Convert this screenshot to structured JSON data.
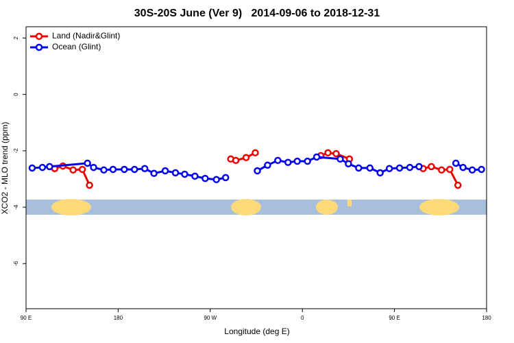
{
  "chart_data": {
    "type": "line",
    "title": "30S-20S June (Ver 9)   2014-09-06 to 2018-12-31",
    "x_label": "Longitude (deg E)",
    "y_label": "XCO2 - MLO trend (ppm)",
    "xlim": [
      90,
      540
    ],
    "ylim": [
      -7.6,
      2.4
    ],
    "xticks": [
      {
        "value": 90,
        "label": "90 E"
      },
      180,
      {
        "value": 270,
        "label": "90 W"
      },
      {
        "value": 360,
        "label": "0"
      },
      {
        "value": 450,
        "label": "90 E"
      },
      {
        "value": 540,
        "label": "180"
      }
    ],
    "yticks": [
      2,
      0,
      -2,
      -4,
      -6
    ],
    "legend": "top-left",
    "series": [
      {
        "name": "Land (Nadir&Glint)",
        "color": "#ee0000",
        "x": [
          118,
          126,
          136,
          145,
          152,
          240,
          290,
          295,
          305,
          314,
          340,
          378,
          385,
          393,
          406,
          440,
          478,
          486,
          496,
          504,
          512
        ],
        "values": [
          -2.63,
          -2.54,
          -2.68,
          -2.66,
          -3.22,
          null,
          -2.29,
          -2.34,
          -2.24,
          -2.07,
          null,
          -2.17,
          -2.07,
          -2.1,
          -2.29,
          null,
          -2.63,
          -2.56,
          -2.68,
          -2.66,
          -3.22
        ]
      },
      {
        "name": "Ocean (Glint)",
        "color": "#0000ee",
        "x": [
          96,
          106,
          113,
          150,
          156,
          166,
          175,
          186,
          196,
          206,
          215,
          226,
          236,
          245,
          255,
          265,
          276,
          285,
          300,
          316,
          326,
          336,
          346,
          355,
          365,
          374,
          397,
          405,
          415,
          426,
          436,
          445,
          455,
          465,
          474,
          490,
          510,
          517,
          526,
          535
        ],
        "values": [
          -2.61,
          -2.59,
          -2.56,
          -2.44,
          -2.59,
          -2.68,
          -2.66,
          -2.66,
          -2.66,
          -2.63,
          -2.8,
          -2.71,
          -2.78,
          -2.83,
          -2.9,
          -2.98,
          -3.02,
          -2.95,
          null,
          -2.71,
          -2.51,
          -2.34,
          -2.41,
          -2.37,
          -2.37,
          -2.22,
          -2.29,
          -2.46,
          -2.61,
          -2.61,
          -2.78,
          -2.63,
          -2.61,
          -2.59,
          -2.56,
          null,
          -2.44,
          -2.59,
          -2.68,
          -2.66
        ]
      }
    ]
  }
}
